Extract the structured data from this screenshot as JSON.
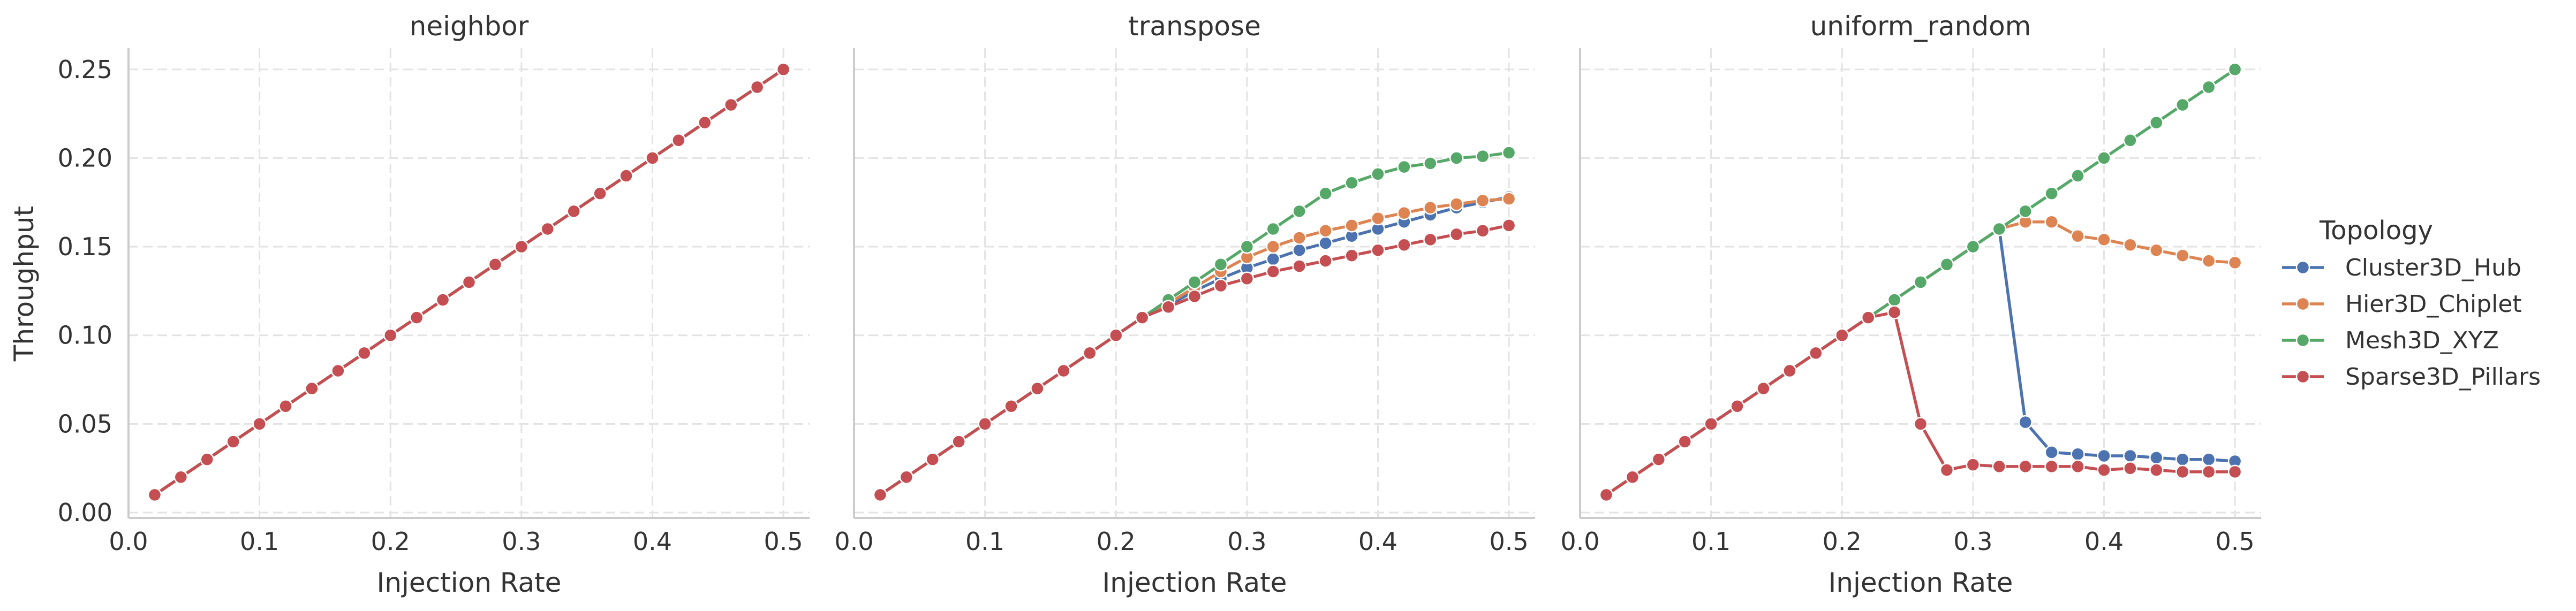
{
  "chart_data": {
    "type": "line",
    "ylabel": "Throughput",
    "xlabel": "Injection Rate",
    "xlim": [
      0.0,
      0.52
    ],
    "ylim": [
      -0.003,
      0.262
    ],
    "xticks": [
      0.0,
      0.1,
      0.2,
      0.3,
      0.4,
      0.5
    ],
    "xtick_labels": [
      "0.0",
      "0.1",
      "0.2",
      "0.3",
      "0.4",
      "0.5"
    ],
    "yticks": [
      0.0,
      0.05,
      0.1,
      0.15,
      0.2,
      0.25
    ],
    "ytick_labels": [
      "0.00",
      "0.05",
      "0.10",
      "0.15",
      "0.20",
      "0.25"
    ],
    "grid": true,
    "legend": {
      "title": "Topology",
      "placement": "right",
      "entries": [
        {
          "name": "Cluster3D_Hub",
          "color": "#4c72b0"
        },
        {
          "name": "Hier3D_Chiplet",
          "color": "#dd8452"
        },
        {
          "name": "Mesh3D_XYZ",
          "color": "#55a868"
        },
        {
          "name": "Sparse3D_Pillars",
          "color": "#c44e52"
        }
      ]
    },
    "x": [
      0.02,
      0.04,
      0.06,
      0.08,
      0.1,
      0.12,
      0.14,
      0.16,
      0.18,
      0.2,
      0.22,
      0.24,
      0.26,
      0.28,
      0.3,
      0.32,
      0.34,
      0.36,
      0.38,
      0.4,
      0.42,
      0.44,
      0.46,
      0.48,
      0.5
    ],
    "panels": [
      {
        "title": "neighbor",
        "series": [
          {
            "name": "Cluster3D_Hub",
            "color": "#4c72b0",
            "values": [
              0.01,
              0.02,
              0.03,
              0.04,
              0.05,
              0.06,
              0.07,
              0.08,
              0.09,
              0.1,
              0.11,
              0.12,
              0.13,
              0.14,
              0.15,
              0.16,
              0.17,
              0.18,
              0.19,
              0.2,
              0.21,
              0.22,
              0.23,
              0.24,
              0.25
            ]
          },
          {
            "name": "Hier3D_Chiplet",
            "color": "#dd8452",
            "values": [
              0.01,
              0.02,
              0.03,
              0.04,
              0.05,
              0.06,
              0.07,
              0.08,
              0.09,
              0.1,
              0.11,
              0.12,
              0.13,
              0.14,
              0.15,
              0.16,
              0.17,
              0.18,
              0.19,
              0.2,
              0.21,
              0.22,
              0.23,
              0.24,
              0.25
            ]
          },
          {
            "name": "Mesh3D_XYZ",
            "color": "#55a868",
            "values": [
              0.01,
              0.02,
              0.03,
              0.04,
              0.05,
              0.06,
              0.07,
              0.08,
              0.09,
              0.1,
              0.11,
              0.12,
              0.13,
              0.14,
              0.15,
              0.16,
              0.17,
              0.18,
              0.19,
              0.2,
              0.21,
              0.22,
              0.23,
              0.24,
              0.25
            ]
          },
          {
            "name": "Sparse3D_Pillars",
            "color": "#c44e52",
            "values": [
              0.01,
              0.02,
              0.03,
              0.04,
              0.05,
              0.06,
              0.07,
              0.08,
              0.09,
              0.1,
              0.11,
              0.12,
              0.13,
              0.14,
              0.15,
              0.16,
              0.17,
              0.18,
              0.19,
              0.2,
              0.21,
              0.22,
              0.23,
              0.24,
              0.25
            ]
          }
        ]
      },
      {
        "title": "transpose",
        "series": [
          {
            "name": "Cluster3D_Hub",
            "color": "#4c72b0",
            "values": [
              0.01,
              0.02,
              0.03,
              0.04,
              0.05,
              0.06,
              0.07,
              0.08,
              0.09,
              0.1,
              0.11,
              0.117,
              0.125,
              0.132,
              0.138,
              0.143,
              0.148,
              0.152,
              0.156,
              0.16,
              0.164,
              0.168,
              0.172,
              0.175,
              0.178
            ]
          },
          {
            "name": "Hier3D_Chiplet",
            "color": "#dd8452",
            "values": [
              0.01,
              0.02,
              0.03,
              0.04,
              0.05,
              0.06,
              0.07,
              0.08,
              0.09,
              0.1,
              0.11,
              0.118,
              0.127,
              0.136,
              0.144,
              0.15,
              0.155,
              0.159,
              0.162,
              0.166,
              0.169,
              0.172,
              0.174,
              0.176,
              0.177
            ]
          },
          {
            "name": "Mesh3D_XYZ",
            "color": "#55a868",
            "values": [
              0.01,
              0.02,
              0.03,
              0.04,
              0.05,
              0.06,
              0.07,
              0.08,
              0.09,
              0.1,
              0.11,
              0.12,
              0.13,
              0.14,
              0.15,
              0.16,
              0.17,
              0.18,
              0.186,
              0.191,
              0.195,
              0.197,
              0.2,
              0.201,
              0.203
            ]
          },
          {
            "name": "Sparse3D_Pillars",
            "color": "#c44e52",
            "values": [
              0.01,
              0.02,
              0.03,
              0.04,
              0.05,
              0.06,
              0.07,
              0.08,
              0.09,
              0.1,
              0.11,
              0.116,
              0.122,
              0.128,
              0.132,
              0.136,
              0.139,
              0.142,
              0.145,
              0.148,
              0.151,
              0.154,
              0.157,
              0.159,
              0.162
            ]
          }
        ]
      },
      {
        "title": "uniform_random",
        "series": [
          {
            "name": "Cluster3D_Hub",
            "color": "#4c72b0",
            "values": [
              0.01,
              0.02,
              0.03,
              0.04,
              0.05,
              0.06,
              0.07,
              0.08,
              0.09,
              0.1,
              0.11,
              0.12,
              0.13,
              0.14,
              0.15,
              0.16,
              0.051,
              0.034,
              0.033,
              0.032,
              0.032,
              0.031,
              0.03,
              0.03,
              0.029
            ]
          },
          {
            "name": "Hier3D_Chiplet",
            "color": "#dd8452",
            "values": [
              0.01,
              0.02,
              0.03,
              0.04,
              0.05,
              0.06,
              0.07,
              0.08,
              0.09,
              0.1,
              0.11,
              0.12,
              0.13,
              0.14,
              0.15,
              0.16,
              0.164,
              0.164,
              0.156,
              0.154,
              0.151,
              0.148,
              0.145,
              0.142,
              0.141
            ]
          },
          {
            "name": "Mesh3D_XYZ",
            "color": "#55a868",
            "values": [
              0.01,
              0.02,
              0.03,
              0.04,
              0.05,
              0.06,
              0.07,
              0.08,
              0.09,
              0.1,
              0.11,
              0.12,
              0.13,
              0.14,
              0.15,
              0.16,
              0.17,
              0.18,
              0.19,
              0.2,
              0.21,
              0.22,
              0.23,
              0.24,
              0.25
            ]
          },
          {
            "name": "Sparse3D_Pillars",
            "color": "#c44e52",
            "values": [
              0.01,
              0.02,
              0.03,
              0.04,
              0.05,
              0.06,
              0.07,
              0.08,
              0.09,
              0.1,
              0.11,
              0.113,
              0.05,
              0.024,
              0.027,
              0.026,
              0.026,
              0.026,
              0.026,
              0.024,
              0.025,
              0.024,
              0.023,
              0.023,
              0.023
            ]
          }
        ]
      }
    ]
  }
}
